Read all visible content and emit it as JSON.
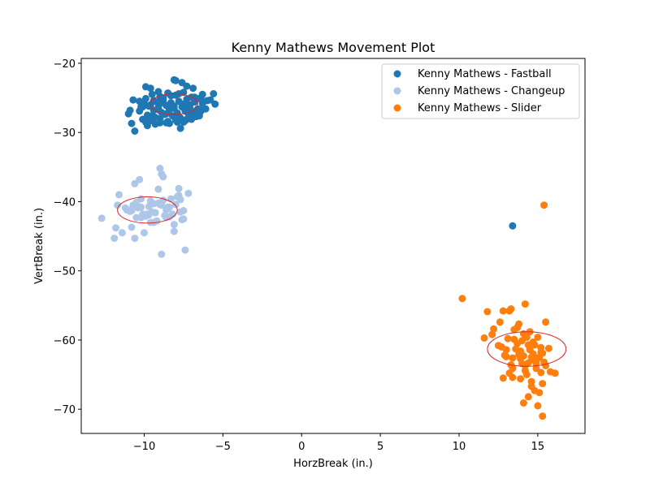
{
  "chart_data": {
    "type": "scatter",
    "title": "Kenny Mathews Movement Plot",
    "xlabel": "HorzBreak (in.)",
    "ylabel": "VertBreak (in.)",
    "xlim": [
      -14,
      18
    ],
    "ylim": [
      -73.5,
      -19.3
    ],
    "xticks": [
      -10,
      -5,
      0,
      5,
      10,
      15
    ],
    "xtick_labels": [
      "−10",
      "−5",
      "0",
      "5",
      "10",
      "15"
    ],
    "yticks": [
      -20,
      -30,
      -40,
      -50,
      -60,
      -70
    ],
    "ytick_labels": [
      "−20",
      "−30",
      "−40",
      "−50",
      "−60",
      "−70"
    ],
    "grid": false,
    "legend_position": "top-right",
    "series": [
      {
        "name": "Kenny Mathews - Fastball",
        "color": "#1f77b4",
        "x": [
          -9.5,
          -9.0,
          -8.5,
          -8.0,
          -7.5,
          -7.0,
          -6.5,
          -6.0,
          -10.0,
          -9.2,
          -8.8,
          -8.3,
          -7.8,
          -7.3,
          -6.8,
          -6.3,
          -9.7,
          -9.1,
          -8.6,
          -8.1,
          -7.6,
          -7.1,
          -6.6,
          -10.3,
          -9.4,
          -8.9,
          -8.4,
          -7.9,
          -7.4,
          -6.9,
          -6.4,
          -9.8,
          -9.3,
          -8.7,
          -8.2,
          -7.7,
          -7.2,
          -6.7,
          -10.1,
          -9.6,
          -9.0,
          -8.5,
          -8.0,
          -7.5,
          -7.0,
          -6.5,
          -9.9,
          -9.4,
          -8.8,
          -8.3,
          -7.8,
          -7.3,
          -6.8,
          -6.2,
          -9.6,
          -9.1,
          -8.6,
          -8.1,
          -7.6,
          -7.1,
          -6.6,
          -10.2,
          -9.5,
          -9.0,
          -8.4,
          -7.9,
          -7.4,
          -6.9,
          -6.4,
          -10.9,
          -11.0,
          -10.8,
          -10.6,
          -10.7,
          -10.3,
          -10.1,
          -9.9,
          -9.6,
          -9.9,
          -9.8,
          -9.3,
          -8.6,
          -8.0,
          -7.6,
          -7.3,
          -6.9,
          -6.3,
          -5.6,
          -5.8,
          -5.5,
          -6.1,
          -6.5,
          -8.1,
          -7.3,
          -7.7,
          -8.8,
          -9.1,
          -6.7,
          13.4
        ],
        "y": [
          -24.5,
          -24.8,
          -24.3,
          -24.6,
          -24.2,
          -24.9,
          -25.1,
          -25.4,
          -25.8,
          -25.6,
          -25.3,
          -25.7,
          -25.5,
          -25.9,
          -25.6,
          -25.8,
          -26.2,
          -26.4,
          -26.1,
          -26.5,
          -26.3,
          -26.0,
          -26.6,
          -26.9,
          -26.8,
          -27.1,
          -26.7,
          -27.2,
          -26.9,
          -27.0,
          -26.8,
          -27.5,
          -27.8,
          -27.4,
          -27.6,
          -27.9,
          -27.3,
          -27.7,
          -28.1,
          -28.3,
          -28.0,
          -28.4,
          -28.2,
          -28.5,
          -28.1,
          -27.6,
          -25.1,
          -25.4,
          -25.0,
          -24.7,
          -24.4,
          -25.2,
          -24.9,
          -25.5,
          -26.0,
          -26.7,
          -27.3,
          -26.2,
          -25.9,
          -26.4,
          -27.0,
          -26.3,
          -27.6,
          -28.6,
          -28.7,
          -28.5,
          -28.3,
          -27.8,
          -26.9,
          -26.8,
          -27.3,
          -28.7,
          -29.8,
          -25.3,
          -25.5,
          -26.3,
          -23.4,
          -23.6,
          -28.5,
          -29.0,
          -28.8,
          -28.6,
          -22.5,
          -22.8,
          -23.3,
          -23.6,
          -24.5,
          -24.4,
          -25.3,
          -25.9,
          -26.6,
          -27.4,
          -22.4,
          -28.1,
          -29.4,
          -25.7,
          -24.1,
          -26.9,
          -43.5
        ]
      },
      {
        "name": "Kenny Mathews - Changeup",
        "color": "#aec7e8",
        "x": [
          -12.7,
          -11.9,
          -11.8,
          -11.6,
          -11.4,
          -11.1,
          -10.8,
          -10.6,
          -10.5,
          -10.3,
          -10.2,
          -10.0,
          -9.8,
          -9.6,
          -9.4,
          -9.3,
          -9.1,
          -8.9,
          -8.7,
          -8.5,
          -8.3,
          -8.1,
          -7.9,
          -7.7,
          -7.5,
          -7.4,
          -7.2,
          -11.2,
          -10.9,
          -10.7,
          -10.4,
          -10.1,
          -9.9,
          -9.7,
          -9.5,
          -9.2,
          -9.0,
          -8.8,
          -8.6,
          -8.4,
          -8.2,
          -8.0,
          -7.8,
          -10.6,
          -10.2,
          -9.7,
          -9.1,
          -8.6,
          -8.1,
          -7.7,
          -10.9,
          -10.5,
          -9.6,
          -8.9,
          -8.5,
          -7.8,
          -8.9,
          -7.5,
          -10.6,
          -10.2,
          -8.4,
          -7.6,
          -11.7,
          -9.4,
          -10.8,
          -9.0,
          -8.8
        ],
        "y": [
          -42.4,
          -45.3,
          -43.8,
          -39.0,
          -44.5,
          -41.2,
          -43.7,
          -45.3,
          -40.1,
          -36.8,
          -42.3,
          -44.5,
          -41.8,
          -43.0,
          -40.3,
          -41.6,
          -38.2,
          -40.5,
          -42.0,
          -40.8,
          -39.6,
          -43.3,
          -39.3,
          -41.5,
          -42.5,
          -47.0,
          -38.8,
          -40.9,
          -41.4,
          -40.5,
          -40.9,
          -41.8,
          -42.1,
          -40.7,
          -41.5,
          -42.8,
          -40.4,
          -39.8,
          -41.2,
          -42.2,
          -41.8,
          -40.4,
          -38.1,
          -40.6,
          -39.6,
          -41.9,
          -40.2,
          -42.3,
          -44.3,
          -39.7,
          -41.2,
          -42.3,
          -39.9,
          -47.6,
          -41.0,
          -39.1,
          -36.0,
          -41.3,
          -37.4,
          -40.8,
          -40.8,
          -42.6,
          -40.5,
          -43.0,
          -41.3,
          -35.2,
          -36.4
        ]
      },
      {
        "name": "Kenny Mathews - Slider",
        "color": "#ff7f0e",
        "x": [
          10.2,
          11.6,
          11.8,
          12.1,
          12.2,
          12.5,
          12.6,
          12.8,
          13.0,
          13.2,
          13.3,
          13.4,
          13.5,
          13.7,
          13.8,
          13.9,
          14.0,
          14.1,
          14.2,
          14.3,
          14.4,
          14.5,
          14.6,
          14.7,
          14.8,
          14.9,
          15.0,
          15.1,
          15.2,
          15.3,
          15.5,
          15.7,
          15.8,
          16.1,
          12.7,
          12.9,
          13.1,
          13.4,
          13.6,
          13.9,
          14.1,
          14.4,
          14.6,
          14.9,
          15.1,
          15.3,
          13.0,
          13.3,
          13.7,
          14.0,
          14.3,
          14.7,
          15.0,
          15.2,
          13.5,
          13.8,
          14.2,
          14.5,
          14.8,
          15.4,
          13.2,
          13.9,
          14.4,
          15.0,
          14.1,
          14.6,
          15.4,
          15.3,
          14.2,
          13.4,
          12.8,
          14.9,
          15.2,
          14.7,
          15.5
        ],
        "y": [
          -54.0,
          -59.7,
          -55.9,
          -59.2,
          -58.4,
          -60.8,
          -57.4,
          -55.8,
          -62.4,
          -55.8,
          -55.5,
          -65.4,
          -58.5,
          -60.5,
          -57.7,
          -61.6,
          -63.4,
          -62.3,
          -64.4,
          -59.6,
          -63.3,
          -61.4,
          -62.5,
          -60.3,
          -67.3,
          -64.1,
          -62.6,
          -67.6,
          -61.8,
          -71.0,
          -57.4,
          -61.2,
          -64.6,
          -64.8,
          -61.0,
          -62.2,
          -59.8,
          -64.1,
          -61.3,
          -62.7,
          -59.1,
          -60.7,
          -66.0,
          -63.0,
          -62.5,
          -66.3,
          -61.4,
          -63.6,
          -58.2,
          -60.1,
          -65.0,
          -62.8,
          -59.6,
          -61.1,
          -59.9,
          -62.1,
          -63.7,
          -58.8,
          -60.7,
          -63.2,
          -64.8,
          -65.6,
          -68.2,
          -69.5,
          -69.1,
          -66.7,
          -40.5,
          -61.9,
          -54.8,
          -62.6,
          -65.5,
          -63.4,
          -64.7,
          -62.0,
          -63.7
        ]
      }
    ],
    "ellipses": [
      {
        "series": "Kenny Mathews - Fastball",
        "color": "#d62728",
        "cx": -8.1,
        "cy": -25.9,
        "rx": 1.5,
        "ry": 1.5
      },
      {
        "series": "Kenny Mathews - Changeup",
        "color": "#d62728",
        "cx": -9.8,
        "cy": -41.2,
        "rx": 1.9,
        "ry": 1.9
      },
      {
        "series": "Kenny Mathews - Slider",
        "color": "#d62728",
        "cx": 14.3,
        "cy": -61.3,
        "rx": 2.5,
        "ry": 2.5
      }
    ]
  }
}
